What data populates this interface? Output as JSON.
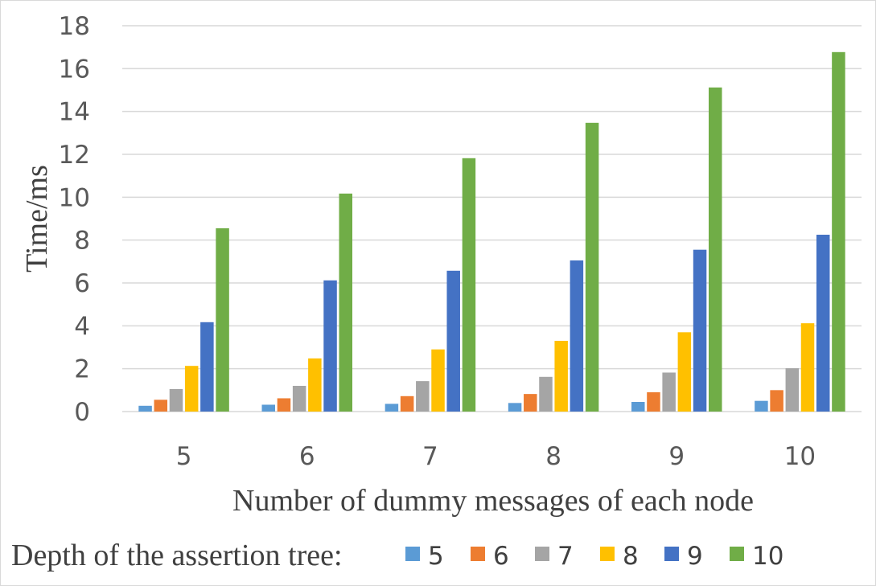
{
  "chart_data": {
    "type": "bar",
    "title": "",
    "xlabel": "Number of dummy messages of each node",
    "ylabel": "Time/ms",
    "ylim": [
      0,
      18
    ],
    "yticks": [
      "0",
      "2",
      "4",
      "6",
      "8",
      "10",
      "12",
      "14",
      "16",
      "18"
    ],
    "categories": [
      "5",
      "6",
      "7",
      "8",
      "9",
      "10"
    ],
    "grid": true,
    "legend_position": "bottom",
    "legend_title": "Depth of the assertion tree:",
    "series": [
      {
        "name": "5",
        "color": "#5b9bd5",
        "values": [
          0.27,
          0.32,
          0.36,
          0.4,
          0.45,
          0.5
        ]
      },
      {
        "name": "6",
        "color": "#ed7d31",
        "values": [
          0.55,
          0.62,
          0.72,
          0.82,
          0.9,
          1.0
        ]
      },
      {
        "name": "7",
        "color": "#a5a5a5",
        "values": [
          1.05,
          1.2,
          1.42,
          1.62,
          1.82,
          2.02
        ]
      },
      {
        "name": "8",
        "color": "#ffc000",
        "values": [
          2.13,
          2.48,
          2.9,
          3.3,
          3.7,
          4.12
        ]
      },
      {
        "name": "9",
        "color": "#4472c4",
        "values": [
          4.17,
          6.12,
          6.57,
          7.05,
          7.55,
          8.25
        ]
      },
      {
        "name": "10",
        "color": "#70ad47",
        "values": [
          8.55,
          10.17,
          11.82,
          13.47,
          15.12,
          16.77
        ]
      }
    ]
  }
}
